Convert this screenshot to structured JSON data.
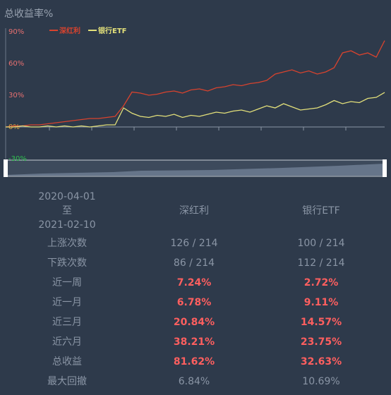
{
  "chart_data": {
    "type": "line",
    "title": "总收益率%",
    "categories": [
      null,
      null,
      null,
      null,
      null,
      null,
      null,
      null,
      null,
      null,
      null,
      null,
      null,
      null,
      null,
      null,
      null,
      null,
      null,
      null,
      null,
      null,
      null,
      null,
      null,
      null,
      null,
      null,
      null,
      null,
      null,
      null,
      null,
      null,
      null,
      null,
      null,
      null,
      null,
      null,
      null,
      null,
      null,
      null,
      null,
      null
    ],
    "series": [
      {
        "name": "深红利",
        "color": "#d8432e",
        "values": [
          0,
          1,
          1,
          2,
          2,
          3,
          4,
          5,
          6,
          7,
          8,
          8,
          9,
          10,
          20,
          33,
          32,
          30,
          31,
          33,
          34,
          32,
          35,
          36,
          34,
          37,
          38,
          40,
          39,
          41,
          42,
          44,
          50,
          52,
          54,
          51,
          53,
          50,
          52,
          56,
          70,
          72,
          68,
          70,
          66,
          81.6
        ]
      },
      {
        "name": "银行ETF",
        "color": "#e3e07a",
        "values": [
          0,
          0,
          1,
          0,
          0,
          1,
          0,
          1,
          0,
          1,
          0,
          1,
          2,
          2,
          18,
          13,
          10,
          9,
          11,
          10,
          12,
          9,
          11,
          10,
          12,
          14,
          13,
          15,
          16,
          14,
          17,
          20,
          18,
          22,
          19,
          16,
          17,
          18,
          21,
          25,
          22,
          24,
          23,
          27,
          28,
          32.6
        ]
      }
    ],
    "ylim": [
      -30,
      90
    ],
    "yticks": [
      {
        "value": -30,
        "label": "-30%"
      },
      {
        "value": 0,
        "label": "0%"
      },
      {
        "value": 30,
        "label": "30%"
      },
      {
        "value": 60,
        "label": "60%"
      },
      {
        "value": 90,
        "label": "90%"
      }
    ]
  },
  "table": {
    "header": [
      "2020-04-01",
      "至",
      "2021-02-10"
    ],
    "columns": [
      "深红利",
      "银行ETF"
    ],
    "rows": [
      [
        "上涨次数",
        "126 / 214",
        "100 / 214"
      ],
      [
        "下跌次数",
        "86 / 214",
        "112 / 214"
      ],
      [
        "近一周",
        "7.24%",
        "2.72%"
      ],
      [
        "近一月",
        "6.78%",
        "9.11%"
      ],
      [
        "近三月",
        "20.84%",
        "14.57%"
      ],
      [
        "近六月",
        "38.21%",
        "23.75%"
      ],
      [
        "总收益",
        "81.62%",
        "32.63%"
      ],
      [
        "最大回撤",
        "6.84%",
        "10.69%"
      ]
    ]
  }
}
